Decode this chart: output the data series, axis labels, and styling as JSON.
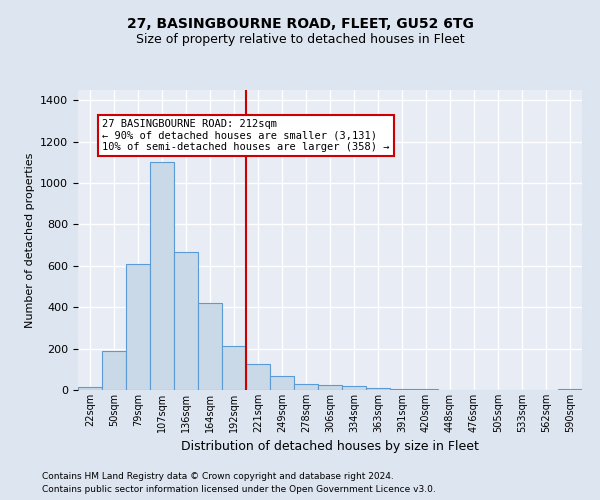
{
  "title1": "27, BASINGBOURNE ROAD, FLEET, GU52 6TG",
  "title2": "Size of property relative to detached houses in Fleet",
  "xlabel": "Distribution of detached houses by size in Fleet",
  "ylabel": "Number of detached properties",
  "categories": [
    "22sqm",
    "50sqm",
    "79sqm",
    "107sqm",
    "136sqm",
    "164sqm",
    "192sqm",
    "221sqm",
    "249sqm",
    "278sqm",
    "306sqm",
    "334sqm",
    "363sqm",
    "391sqm",
    "420sqm",
    "448sqm",
    "476sqm",
    "505sqm",
    "533sqm",
    "562sqm",
    "590sqm"
  ],
  "values": [
    15,
    190,
    610,
    1100,
    665,
    420,
    215,
    125,
    70,
    30,
    25,
    20,
    12,
    5,
    3,
    0,
    0,
    0,
    0,
    0,
    5
  ],
  "bar_color": "#c9d9e8",
  "bar_edge_color": "#5b9bd5",
  "vline_index": 7,
  "vline_color": "#cc0000",
  "annotation_text": "27 BASINGBOURNE ROAD: 212sqm\n← 90% of detached houses are smaller (3,131)\n10% of semi-detached houses are larger (358) →",
  "annotation_box_color": "#ffffff",
  "annotation_box_edge": "#cc0000",
  "footer1": "Contains HM Land Registry data © Crown copyright and database right 2024.",
  "footer2": "Contains public sector information licensed under the Open Government Licence v3.0.",
  "bg_color": "#dde5f0",
  "plot_bg_color": "#e8edf5",
  "ylim": [
    0,
    1450
  ],
  "grid_color": "#ffffff",
  "title1_fontsize": 10,
  "title2_fontsize": 9,
  "ylabel_fontsize": 8,
  "xlabel_fontsize": 9,
  "tick_fontsize": 8,
  "xtick_fontsize": 7
}
